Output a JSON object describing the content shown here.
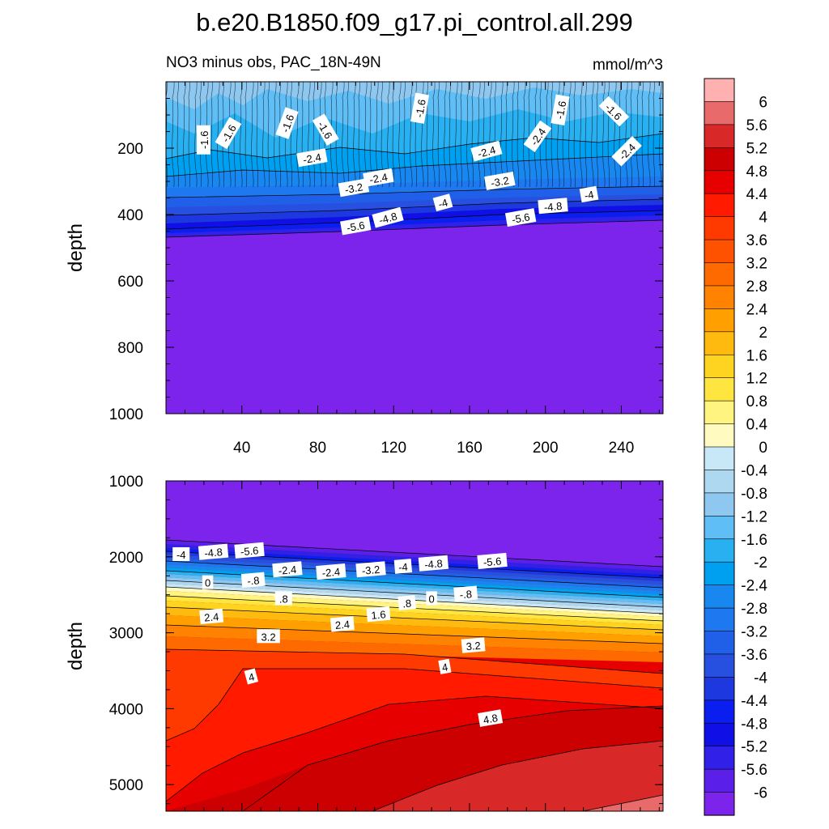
{
  "chart_data": {
    "type": "heatmap",
    "title": "b.e20.B1850.f09_g17.pi_control.all.299",
    "subtitle_left": "NO3 minus obs, PAC_18N-49N",
    "subtitle_right": "mmol/m^3",
    "ylabel": "depth",
    "x_ticks": [
      "40",
      "80",
      "120",
      "160",
      "200",
      "240"
    ],
    "x_tick_values": [
      40,
      80,
      120,
      160,
      200,
      240
    ],
    "xlim": [
      0,
      262
    ],
    "colorbar": {
      "levels": [
        "6",
        "5.6",
        "5.2",
        "4.8",
        "4.4",
        "4",
        "3.6",
        "3.2",
        "2.8",
        "2.4",
        "2",
        "1.6",
        "1.2",
        "0.8",
        "0.4",
        "0",
        "-0.4",
        "-0.8",
        "-1.2",
        "-1.6",
        "-2",
        "-2.4",
        "-2.8",
        "-3.2",
        "-3.6",
        "-4",
        "-4.4",
        "-4.8",
        "-5.2",
        "-5.6",
        "-6"
      ],
      "colors": [
        "#FFB0B0",
        "#E86A6A",
        "#D82828",
        "#CC0000",
        "#E60000",
        "#FF1A00",
        "#FF3A00",
        "#FF5200",
        "#FF6A00",
        "#FF8200",
        "#FFA000",
        "#FFBA10",
        "#FFD420",
        "#FFE540",
        "#FFF480",
        "#FFFAC0",
        "#C8E8F8",
        "#ADD8F0",
        "#8EC8F0",
        "#5EBEF5",
        "#28B0F0",
        "#00A0F0",
        "#1888F0",
        "#1E78F0",
        "#2060E8",
        "#2850E0",
        "#1E38E0",
        "#0A1EF0",
        "#1010E6",
        "#3020E8",
        "#5A20EA",
        "#7C24EC"
      ]
    },
    "panels": [
      {
        "ylim": [
          0,
          1000
        ],
        "y_ticks": [
          "200",
          "400",
          "600",
          "800",
          "1000"
        ],
        "y_tick_values": [
          200,
          400,
          600,
          800,
          1000
        ],
        "contour_labels": [
          {
            "text": "-1.6",
            "x": 20,
            "y": 175,
            "rot": -90
          },
          {
            "text": "-1.6",
            "x": 33,
            "y": 155,
            "rot": -60
          },
          {
            "text": "-1.6",
            "x": 64,
            "y": 125,
            "rot": -70
          },
          {
            "text": "-1.6",
            "x": 84,
            "y": 145,
            "rot": 60
          },
          {
            "text": "-1.6",
            "x": 134,
            "y": 80,
            "rot": -80
          },
          {
            "text": "-1.6",
            "x": 208,
            "y": 85,
            "rot": -80
          },
          {
            "text": "-1.6",
            "x": 236,
            "y": 90,
            "rot": 45
          },
          {
            "text": "-2.4",
            "x": 77,
            "y": 230,
            "rot": -10
          },
          {
            "text": "-2.4",
            "x": 169,
            "y": 210,
            "rot": -15
          },
          {
            "text": "-2.4",
            "x": 196,
            "y": 165,
            "rot": -55
          },
          {
            "text": "-2.4",
            "x": 243,
            "y": 210,
            "rot": -45
          },
          {
            "text": "-2.4",
            "x": 112,
            "y": 290,
            "rot": -10
          },
          {
            "text": "-3.2",
            "x": 99,
            "y": 320,
            "rot": -10
          },
          {
            "text": "-3.2",
            "x": 176,
            "y": 300,
            "rot": -10
          },
          {
            "text": "-4",
            "x": 146,
            "y": 365,
            "rot": -15
          },
          {
            "text": "-4",
            "x": 223,
            "y": 340,
            "rot": -10
          },
          {
            "text": "-4.8",
            "x": 117,
            "y": 410,
            "rot": -15
          },
          {
            "text": "-4.8",
            "x": 204,
            "y": 375,
            "rot": -5
          },
          {
            "text": "-5.6",
            "x": 100,
            "y": 435,
            "rot": -10
          },
          {
            "text": "-5.6",
            "x": 187,
            "y": 410,
            "rot": -10
          }
        ]
      },
      {
        "ylim": [
          1000,
          5350
        ],
        "y_ticks": [
          "1000",
          "2000",
          "3000",
          "4000",
          "5000"
        ],
        "y_tick_values": [
          1000,
          2000,
          3000,
          4000,
          5000
        ],
        "contour_labels": [
          {
            "text": "-4",
            "x": 8,
            "y": 1970,
            "rot": 0
          },
          {
            "text": "-4.8",
            "x": 25,
            "y": 1940,
            "rot": -5
          },
          {
            "text": "-5.6",
            "x": 44,
            "y": 1920,
            "rot": -5
          },
          {
            "text": "-2.4",
            "x": 64,
            "y": 2170,
            "rot": -5
          },
          {
            "text": "-2.4",
            "x": 87,
            "y": 2200,
            "rot": -5
          },
          {
            "text": "-3.2",
            "x": 108,
            "y": 2170,
            "rot": -5
          },
          {
            "text": "-4",
            "x": 125,
            "y": 2130,
            "rot": -5
          },
          {
            "text": "-4.8",
            "x": 141,
            "y": 2090,
            "rot": -5
          },
          {
            "text": "-5.6",
            "x": 172,
            "y": 2060,
            "rot": -5
          },
          {
            "text": "0",
            "x": 22,
            "y": 2340,
            "rot": 0
          },
          {
            "text": "-.8",
            "x": 46,
            "y": 2310,
            "rot": -5
          },
          {
            "text": "-.8",
            "x": 158,
            "y": 2490,
            "rot": -5
          },
          {
            "text": "0",
            "x": 140,
            "y": 2550,
            "rot": 0
          },
          {
            "text": ".8",
            "x": 62,
            "y": 2550,
            "rot": 0
          },
          {
            "text": ".8",
            "x": 127,
            "y": 2610,
            "rot": -5
          },
          {
            "text": "1.6",
            "x": 112,
            "y": 2760,
            "rot": -5
          },
          {
            "text": "2.4",
            "x": 24,
            "y": 2790,
            "rot": -5
          },
          {
            "text": "2.4",
            "x": 93,
            "y": 2890,
            "rot": -5
          },
          {
            "text": "3.2",
            "x": 54,
            "y": 3050,
            "rot": 0
          },
          {
            "text": "3.2",
            "x": 162,
            "y": 3170,
            "rot": -5
          },
          {
            "text": "4",
            "x": 45,
            "y": 3580,
            "rot": -15
          },
          {
            "text": "4",
            "x": 147,
            "y": 3450,
            "rot": -10
          },
          {
            "text": "4.8",
            "x": 171,
            "y": 4130,
            "rot": -10
          }
        ]
      }
    ]
  }
}
